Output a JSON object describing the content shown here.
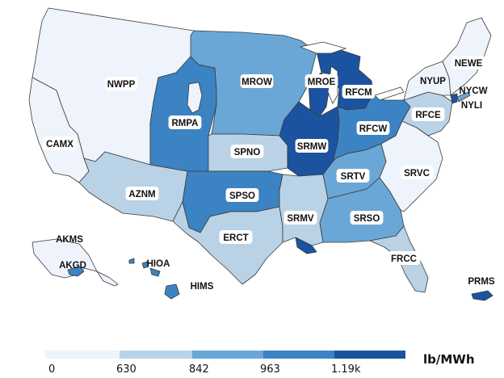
{
  "colors": {
    "bin0": "#eef3fc",
    "bin1": "#b9d2e6",
    "bin2": "#6aa7d6",
    "bin3": "#3b83c3",
    "bin4": "#1b53a0",
    "border": "#3a3a3a",
    "background": "#ffffff"
  },
  "regions": {
    "NWPP": "NWPP",
    "CAMX": "CAMX",
    "AZNM": "AZNM",
    "RMPA": "RMPA",
    "MROW": "MROW",
    "MROE": "MROE",
    "SPNO": "SPNO",
    "SPSO": "SPSO",
    "ERCT": "ERCT",
    "SRMW": "SRMW",
    "SRMV": "SRMV",
    "RFCM": "RFCM",
    "RFCW": "RFCW",
    "RFCE": "RFCE",
    "SRTV": "SRTV",
    "SRSO": "SRSO",
    "SRVC": "SRVC",
    "FRCC": "FRCC",
    "NYUP": "NYUP",
    "NYCW": "NYCW",
    "NYLI": "NYLI",
    "NEWE": "NEWE",
    "AKMS": "AKMS",
    "AKGD": "AKGD",
    "HIOA": "HIOA",
    "HIMS": "HIMS",
    "PRMS": "PRMS"
  },
  "legend": {
    "title": "lb/MWh",
    "ticks": [
      "0",
      "630",
      "842",
      "963",
      "1.19k"
    ]
  }
}
